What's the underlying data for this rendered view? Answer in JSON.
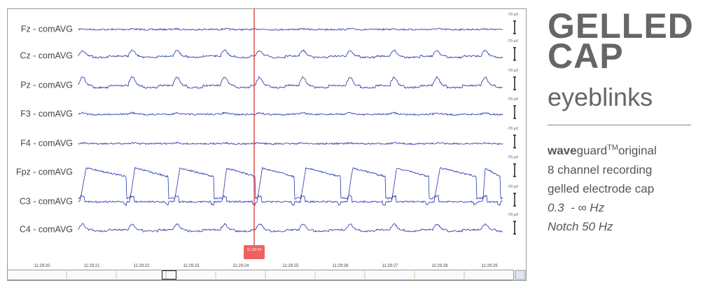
{
  "window": {
    "channels": [
      "Fz - comAVG",
      "Cz - comAVG",
      "Pz - comAVG",
      "F3 - comAVG",
      "F4 - comAVG",
      "Fpz - comAVG",
      "C3 - comAVG",
      "C4 - comAVG"
    ],
    "scale_label": "-70 µV",
    "cursor_time": "11:29:24",
    "time_labels": [
      "11:29:20",
      "11:29:21",
      "11:29:22",
      "11:29:23",
      "11:29:24",
      "11:29:25",
      "11:29:26",
      "11:29:27",
      "11:29:28",
      "11:29:29"
    ]
  },
  "panel": {
    "title_line1": "GELLED",
    "title_line2": "CAP",
    "subtitle": "eyeblinks",
    "brand_bold": "wave",
    "brand_rest": "guard",
    "brand_tm": "TM",
    "brand_suffix": "original",
    "lines": [
      "8 channel recording",
      "gelled electrode cap"
    ],
    "filter": "0.3  - ∞ Hz",
    "notch": "Notch 50 Hz"
  }
}
